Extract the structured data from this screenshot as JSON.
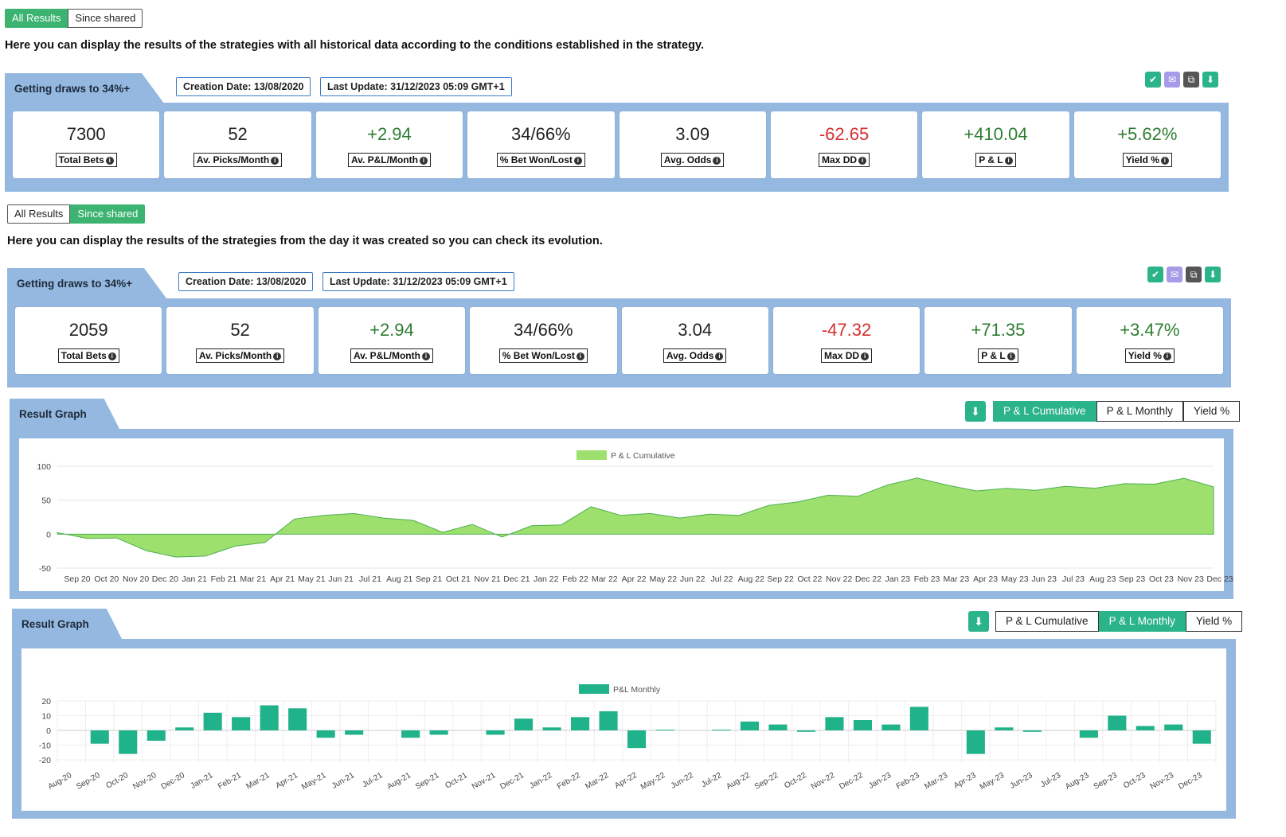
{
  "top_toggle": {
    "all_label": "All Results",
    "shared_label": "Since shared"
  },
  "desc_all": "Here you can display the results of the strategies with all historical data according to the conditions established in the strategy.",
  "desc_shared": "Here you can display the results of the strategies from the day it was created so you can check its evolution.",
  "strategy_title": "Getting draws to 34%+",
  "creation_date": "Creation Date: 13/08/2020",
  "last_update": "Last Update: 31/12/2023 05:09 GMT+1",
  "icon_colors": {
    "check": "#2bb38a",
    "mail": "#a59be8",
    "copy": "#555555",
    "download": "#2bb38a"
  },
  "stats_all": [
    {
      "value": "7300",
      "label": "Total Bets",
      "tone": "neu"
    },
    {
      "value": "52",
      "label": "Av. Picks/Month",
      "tone": "neu"
    },
    {
      "value": "+2.94",
      "label": "Av. P&L/Month",
      "tone": "pos"
    },
    {
      "value": "34/66%",
      "label": "% Bet Won/Lost",
      "tone": "neu"
    },
    {
      "value": "3.09",
      "label": "Avg. Odds",
      "tone": "neu"
    },
    {
      "value": "-62.65",
      "label": "Max DD",
      "tone": "neg"
    },
    {
      "value": "+410.04",
      "label": "P & L",
      "tone": "pos"
    },
    {
      "value": "+5.62%",
      "label": "Yield %",
      "tone": "pos"
    }
  ],
  "stats_shared": [
    {
      "value": "2059",
      "label": "Total Bets",
      "tone": "neu"
    },
    {
      "value": "52",
      "label": "Av. Picks/Month",
      "tone": "neu"
    },
    {
      "value": "+2.94",
      "label": "Av. P&L/Month",
      "tone": "pos"
    },
    {
      "value": "34/66%",
      "label": "% Bet Won/Lost",
      "tone": "neu"
    },
    {
      "value": "3.04",
      "label": "Avg. Odds",
      "tone": "neu"
    },
    {
      "value": "-47.32",
      "label": "Max DD",
      "tone": "neg"
    },
    {
      "value": "+71.35",
      "label": "P & L",
      "tone": "pos"
    },
    {
      "value": "+3.47%",
      "label": "Yield %",
      "tone": "pos"
    }
  ],
  "graph1": {
    "title": "Result Graph",
    "tabs": [
      "P & L Cumulative",
      "P & L Monthly",
      "Yield %"
    ],
    "active": 0
  },
  "graph2": {
    "title": "Result Graph",
    "tabs": [
      "P & L Cumulative",
      "P & L Monthly",
      "Yield %"
    ],
    "active": 1
  },
  "chart_data": [
    {
      "type": "area",
      "legend": "P & L Cumulative",
      "color": "#9ee06e",
      "ylim": [
        -50,
        100
      ],
      "yticks": [
        100,
        50,
        0,
        -50
      ],
      "x_labels": [
        "Sep 20",
        "Oct 20",
        "Nov 20",
        "Dec 20",
        "Jan 21",
        "Feb 21",
        "Mar 21",
        "Apr 21",
        "May 21",
        "Jun 21",
        "Jul 21",
        "Aug 21",
        "Sep 21",
        "Oct 21",
        "Nov 21",
        "Dec 21",
        "Jan 22",
        "Feb 22",
        "Mar 22",
        "Apr 22",
        "May 22",
        "Jun 22",
        "Jul 22",
        "Aug 22",
        "Sep 22",
        "Oct 22",
        "Nov 22",
        "Dec 22",
        "Jan 23",
        "Feb 23",
        "Mar 23",
        "Apr 23",
        "May 23",
        "Jun 23",
        "Jul 23",
        "Aug 23",
        "Sep 23",
        "Oct 23",
        "Nov 23",
        "Dec 23"
      ],
      "values": [
        0,
        -4,
        -8,
        -22,
        -36,
        -30,
        -20,
        -10,
        20,
        30,
        28,
        26,
        18,
        5,
        12,
        -2,
        10,
        16,
        38,
        30,
        28,
        26,
        27,
        30,
        40,
        50,
        55,
        58,
        70,
        85,
        70,
        66,
        65,
        67,
        68,
        70,
        72,
        76,
        80,
        72
      ]
    },
    {
      "type": "bar",
      "legend": "P&L Monthly",
      "color": "#20b28a",
      "ylim": [
        -20,
        20
      ],
      "yticks": [
        20,
        10,
        0,
        -10,
        -20
      ],
      "categories": [
        "Aug-20",
        "Sep-20",
        "Oct-20",
        "Nov-20",
        "Dec-20",
        "Jan-21",
        "Feb-21",
        "Mar-21",
        "Apr-21",
        "May-21",
        "Jun-21",
        "Jul-21",
        "Aug-21",
        "Sep-21",
        "Oct-21",
        "Nov-21",
        "Dec-21",
        "Jan-22",
        "Feb-22",
        "Mar-22",
        "Apr-22",
        "May-22",
        "Jun-22",
        "Jul-22",
        "Aug-22",
        "Sep-22",
        "Oct-22",
        "Nov-22",
        "Dec-22",
        "Jan-23",
        "Feb-23",
        "Mar-23",
        "Apr-23",
        "May-23",
        "Jun-23",
        "Jul-23",
        "Aug-23",
        "Sep-23",
        "Oct-23",
        "Nov-23",
        "Dec-23"
      ],
      "values": [
        0,
        -9,
        -16,
        -7,
        2,
        12,
        9,
        17,
        15,
        -5,
        -3,
        0,
        -5,
        -3,
        0,
        -3,
        8,
        2,
        9,
        13,
        -12,
        0.5,
        0,
        0.5,
        6,
        4,
        -1,
        9,
        7,
        4,
        16,
        0,
        -16,
        2,
        -1,
        0,
        -5,
        10,
        3,
        4,
        -9
      ]
    }
  ]
}
